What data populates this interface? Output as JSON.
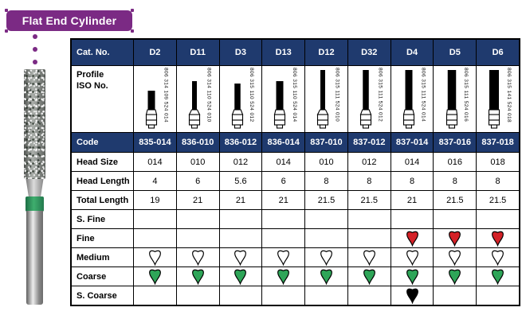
{
  "banner": {
    "title": "Flat End Cylinder"
  },
  "colors": {
    "purple": "#7b2a84",
    "navy": "#1f3a6e",
    "grit": {
      "open": "#ffffff",
      "green": "#2ea558",
      "red": "#d42127",
      "black": "#000000"
    }
  },
  "table": {
    "cat_no_label": "Cat. No.",
    "profile_label": "Profile\nISO No.",
    "row_labels": {
      "code": "Code",
      "head_size": "Head Size",
      "head_length": "Head Length",
      "total_length": "Total Length",
      "s_fine": "S. Fine",
      "fine": "Fine",
      "medium": "Medium",
      "coarse": "Coarse",
      "s_coarse": "S. Coarse"
    },
    "columns": [
      {
        "cat": "D2",
        "iso": "806 314 109 524 014",
        "code": "835-014",
        "head_size": "014",
        "head_length": "4",
        "total_length": "19",
        "grit": {
          "s_fine": null,
          "fine": null,
          "medium": "open",
          "coarse": "green",
          "s_coarse": null
        }
      },
      {
        "cat": "D11",
        "iso": "806 314 110 524 010",
        "code": "836-010",
        "head_size": "010",
        "head_length": "6",
        "total_length": "21",
        "grit": {
          "s_fine": null,
          "fine": null,
          "medium": "open",
          "coarse": "green",
          "s_coarse": null
        }
      },
      {
        "cat": "D3",
        "iso": "806 315 110 524 012",
        "code": "836-012",
        "head_size": "012",
        "head_length": "5.6",
        "total_length": "21",
        "grit": {
          "s_fine": null,
          "fine": null,
          "medium": "open",
          "coarse": "green",
          "s_coarse": null
        }
      },
      {
        "cat": "D13",
        "iso": "806 315 110 524 014",
        "code": "836-014",
        "head_size": "014",
        "head_length": "6",
        "total_length": "21",
        "grit": {
          "s_fine": null,
          "fine": null,
          "medium": "open",
          "coarse": "green",
          "s_coarse": null
        }
      },
      {
        "cat": "D12",
        "iso": "806 315 111 524 010",
        "code": "837-010",
        "head_size": "010",
        "head_length": "8",
        "total_length": "21.5",
        "grit": {
          "s_fine": null,
          "fine": null,
          "medium": "open",
          "coarse": "green",
          "s_coarse": null
        }
      },
      {
        "cat": "D32",
        "iso": "806 315 111 524 012",
        "code": "837-012",
        "head_size": "012",
        "head_length": "8",
        "total_length": "21.5",
        "grit": {
          "s_fine": null,
          "fine": null,
          "medium": "open",
          "coarse": "green",
          "s_coarse": null
        }
      },
      {
        "cat": "D4",
        "iso": "806 315 111 524 014",
        "code": "837-014",
        "head_size": "014",
        "head_length": "8",
        "total_length": "21",
        "grit": {
          "s_fine": null,
          "fine": "red",
          "medium": "open",
          "coarse": "green",
          "s_coarse": "black"
        }
      },
      {
        "cat": "D5",
        "iso": "806 315 111 524 016",
        "code": "837-016",
        "head_size": "016",
        "head_length": "8",
        "total_length": "21.5",
        "grit": {
          "s_fine": null,
          "fine": "red",
          "medium": "open",
          "coarse": "green",
          "s_coarse": null
        }
      },
      {
        "cat": "D6",
        "iso": "806 315 141 524 018",
        "code": "837-018",
        "head_size": "018",
        "head_length": "8",
        "total_length": "21.5",
        "grit": {
          "s_fine": null,
          "fine": "red",
          "medium": "open",
          "coarse": "green",
          "s_coarse": null
        }
      }
    ]
  }
}
